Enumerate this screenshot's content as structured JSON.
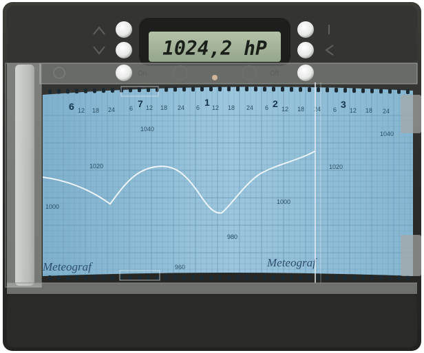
{
  "display": {
    "pressure_reading": "1024,2 hP"
  },
  "controls": {
    "on_label": "On",
    "off_label": "Off"
  },
  "chart_paper": {
    "day_labels": [
      "6",
      "7",
      "1",
      "2",
      "3"
    ],
    "hour_labels": [
      "12",
      "18",
      "24",
      "6",
      "12",
      "18",
      "24",
      "6",
      "12",
      "18",
      "24",
      "6",
      "12",
      "18",
      "24",
      "6",
      "12",
      "18",
      "24"
    ],
    "pressure_labels": [
      "1040",
      "1020",
      "1000",
      "980",
      "960",
      "1040",
      "1020",
      "1000"
    ],
    "brand_left": "Meteograf",
    "brand_right": "Meteograf"
  },
  "colors": {
    "housing": "#2f302d",
    "paper": "#8fbcd6",
    "grid": "#6f9fbd",
    "lcd": "#a4b49a",
    "trace": "#eef4f7"
  },
  "icons": [
    "up-arrow-icon",
    "down-arrow-icon",
    "pipe-icon",
    "left-triangle-icon"
  ]
}
